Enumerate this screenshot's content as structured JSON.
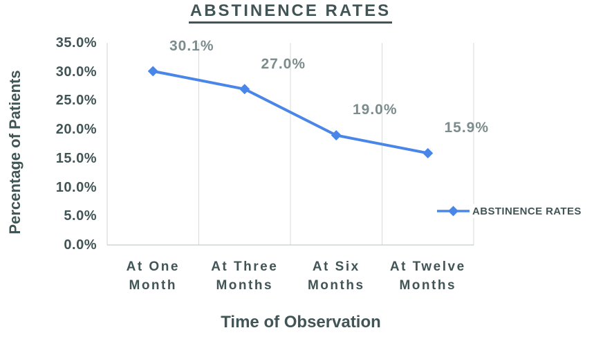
{
  "chart": {
    "title": "ABSTINENCE RATES",
    "xlabel": "Time of Observation",
    "ylabel": "Percentage of Patients"
  },
  "chart_data": {
    "type": "line",
    "title": "ABSTINENCE RATES",
    "xlabel": "Time of Observation",
    "ylabel": "Percentage of Patients",
    "categories": [
      "At One\nMonth",
      "At Three\nMonths",
      "At Six\nMonths",
      "At Twelve\nMonths"
    ],
    "series": [
      {
        "name": "ABSTINENCE RATES",
        "values": [
          30.1,
          27.0,
          19.0,
          15.9
        ]
      }
    ],
    "data_labels": [
      "30.1%",
      "27.0%",
      "19.0%",
      "15.9%"
    ],
    "yticks": [
      "35.0%",
      "30.0%",
      "25.0%",
      "20.0%",
      "15.0%",
      "10.0%",
      "5.0%",
      "0.0%"
    ],
    "ylim": [
      0,
      35
    ],
    "grid": "vertical-category-boundaries-only",
    "legend_position": "right",
    "marker": "diamond",
    "colors": {
      "line": "#4a86e8",
      "text_dark": "#415456",
      "data_label": "#7c8b8c",
      "gridline": "#d9d9d9",
      "axis_line": "#ccd5d8"
    }
  }
}
